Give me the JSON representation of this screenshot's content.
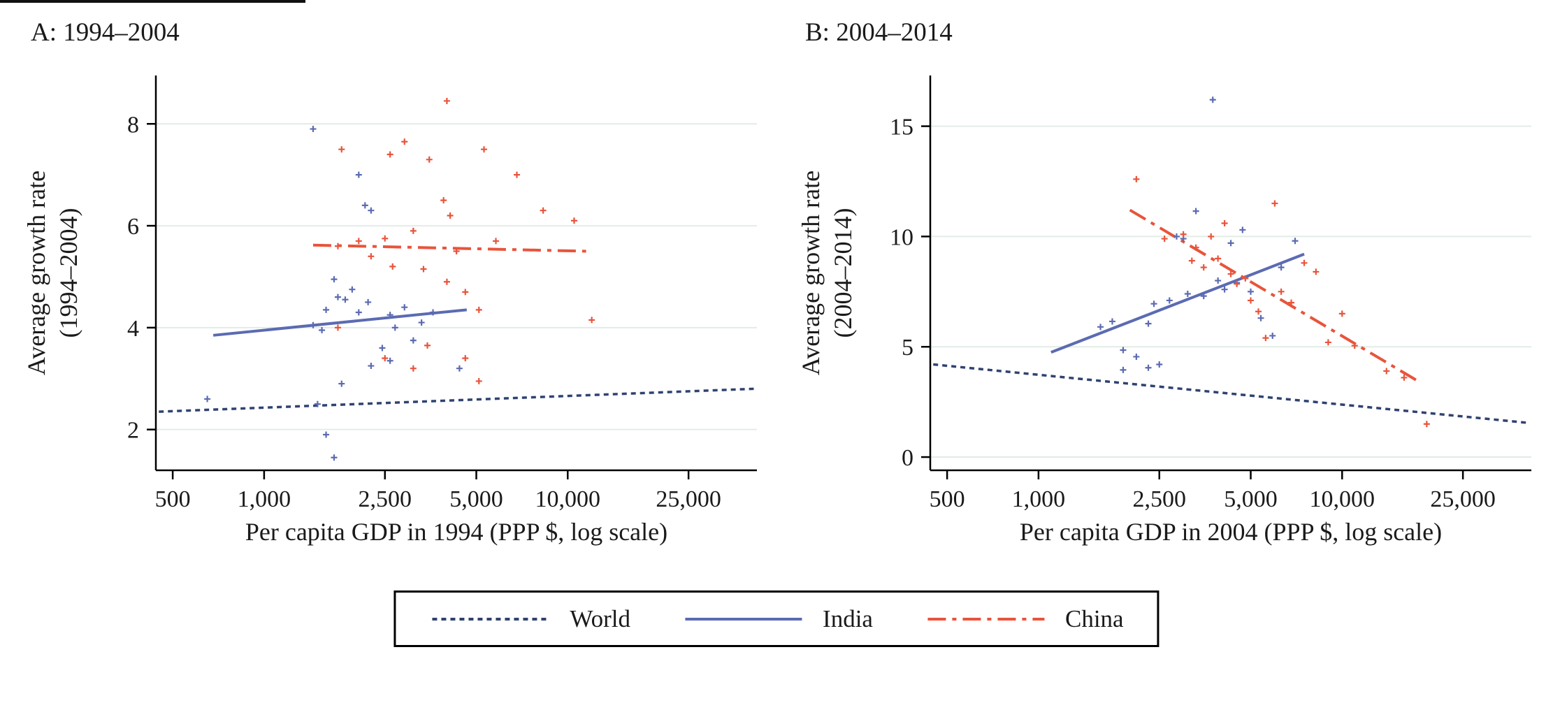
{
  "chart_data": {
    "type": "scatter",
    "description": "Two-panel scatter plot with log-scale GDP per capita on x-axis and average growth rate on y-axis; fitted trend lines for World, India (states) and China (provinces).",
    "panels": [
      {
        "id": "A",
        "title": "A: 1994–2004",
        "ylabel_line1": "Average growth rate",
        "ylabel_line2": "(1994–2004)",
        "xlabel": "Per capita GDP in 1994 (PPP $, log scale)",
        "xlim": [
          440,
          42000
        ],
        "ylim": [
          1.2,
          8.95
        ],
        "x_ticks": [
          500,
          1000,
          2500,
          5000,
          10000,
          25000
        ],
        "x_tick_labels": [
          "500",
          "1,000",
          "2,500",
          "5,000",
          "10,000",
          "25,000"
        ],
        "y_ticks": [
          2,
          4,
          6,
          8
        ],
        "y_tick_labels": [
          "2",
          "4",
          "6",
          "8"
        ],
        "grid": "horizontal",
        "scatter": {
          "india": [
            [
              650,
              2.6
            ],
            [
              1450,
              7.9
            ],
            [
              2050,
              7.0
            ],
            [
              2150,
              6.4
            ],
            [
              2250,
              6.3
            ],
            [
              1700,
              4.95
            ],
            [
              1750,
              4.6
            ],
            [
              1850,
              4.55
            ],
            [
              1950,
              4.75
            ],
            [
              1600,
              4.35
            ],
            [
              1450,
              4.05
            ],
            [
              1550,
              3.95
            ],
            [
              2050,
              4.3
            ],
            [
              2200,
              4.5
            ],
            [
              2600,
              4.25
            ],
            [
              2900,
              4.4
            ],
            [
              2700,
              4.0
            ],
            [
              2450,
              3.6
            ],
            [
              2600,
              3.35
            ],
            [
              2250,
              3.25
            ],
            [
              3100,
              3.75
            ],
            [
              3300,
              4.1
            ],
            [
              3600,
              4.3
            ],
            [
              4400,
              3.2
            ],
            [
              1800,
              2.9
            ],
            [
              1500,
              2.5
            ],
            [
              1600,
              1.9
            ],
            [
              1700,
              1.45
            ]
          ],
          "china": [
            [
              4000,
              8.45
            ],
            [
              1800,
              7.5
            ],
            [
              2600,
              7.4
            ],
            [
              2900,
              7.65
            ],
            [
              3500,
              7.3
            ],
            [
              5300,
              7.5
            ],
            [
              6800,
              7.0
            ],
            [
              8300,
              6.3
            ],
            [
              3900,
              6.5
            ],
            [
              4100,
              6.2
            ],
            [
              3100,
              5.9
            ],
            [
              2500,
              5.75
            ],
            [
              2050,
              5.7
            ],
            [
              1750,
              5.6
            ],
            [
              2250,
              5.4
            ],
            [
              2650,
              5.2
            ],
            [
              3350,
              5.15
            ],
            [
              4000,
              4.9
            ],
            [
              4600,
              4.7
            ],
            [
              5100,
              4.35
            ],
            [
              5800,
              5.7
            ],
            [
              4300,
              5.5
            ],
            [
              1750,
              4.0
            ],
            [
              2500,
              3.4
            ],
            [
              3100,
              3.2
            ],
            [
              3450,
              3.65
            ],
            [
              4600,
              3.4
            ],
            [
              5100,
              2.95
            ],
            [
              10500,
              6.1
            ],
            [
              12000,
              4.15
            ]
          ]
        },
        "lines": {
          "world": [
            [
              450,
              2.35
            ],
            [
              41000,
              2.8
            ]
          ],
          "india": [
            [
              680,
              3.85
            ],
            [
              4650,
              4.35
            ]
          ],
          "china": [
            [
              1450,
              5.62
            ],
            [
              11500,
              5.5
            ]
          ]
        }
      },
      {
        "id": "B",
        "title": "B: 2004–2014",
        "ylabel_line1": "Average growth rate",
        "ylabel_line2": "(2004–2014)",
        "xlabel": "Per capita GDP in 2004 (PPP $, log scale)",
        "xlim": [
          440,
          42000
        ],
        "ylim": [
          -0.6,
          17.3
        ],
        "x_ticks": [
          500,
          1000,
          2500,
          5000,
          10000,
          25000
        ],
        "x_tick_labels": [
          "500",
          "1,000",
          "2,500",
          "5,000",
          "10,000",
          "25,000"
        ],
        "y_ticks": [
          0,
          5,
          10,
          15
        ],
        "y_tick_labels": [
          "0",
          "5",
          "10",
          "15"
        ],
        "grid": "horizontal",
        "scatter": {
          "india": [
            [
              1600,
              5.9
            ],
            [
              1750,
              6.15
            ],
            [
              1900,
              4.85
            ],
            [
              2100,
              4.55
            ],
            [
              2300,
              6.05
            ],
            [
              2400,
              6.95
            ],
            [
              2500,
              4.2
            ],
            [
              2700,
              7.1
            ],
            [
              2850,
              10.0
            ],
            [
              3000,
              9.9
            ],
            [
              3100,
              7.4
            ],
            [
              3300,
              11.15
            ],
            [
              3500,
              7.3
            ],
            [
              3750,
              16.2
            ],
            [
              3900,
              8.0
            ],
            [
              4100,
              7.6
            ],
            [
              4300,
              9.7
            ],
            [
              4500,
              7.9
            ],
            [
              4700,
              10.3
            ],
            [
              5000,
              7.5
            ],
            [
              5400,
              6.3
            ],
            [
              5900,
              5.5
            ],
            [
              6300,
              8.6
            ],
            [
              7000,
              9.8
            ],
            [
              2300,
              4.05
            ],
            [
              1900,
              3.95
            ]
          ],
          "china": [
            [
              2100,
              12.6
            ],
            [
              2600,
              9.9
            ],
            [
              3000,
              10.1
            ],
            [
              3200,
              8.9
            ],
            [
              3300,
              9.5
            ],
            [
              3500,
              8.6
            ],
            [
              3700,
              10.0
            ],
            [
              3900,
              9.0
            ],
            [
              4100,
              10.6
            ],
            [
              4300,
              8.3
            ],
            [
              4500,
              7.85
            ],
            [
              4800,
              8.1
            ],
            [
              5000,
              7.1
            ],
            [
              5300,
              6.6
            ],
            [
              5600,
              5.4
            ],
            [
              6000,
              11.5
            ],
            [
              6300,
              7.5
            ],
            [
              6800,
              7.0
            ],
            [
              7500,
              8.8
            ],
            [
              8200,
              8.4
            ],
            [
              9000,
              5.2
            ],
            [
              10000,
              6.5
            ],
            [
              11000,
              5.05
            ],
            [
              14000,
              3.9
            ],
            [
              16000,
              3.6
            ],
            [
              19000,
              1.5
            ]
          ]
        },
        "lines": {
          "world": [
            [
              450,
              4.2
            ],
            [
              41000,
              1.55
            ]
          ],
          "india": [
            [
              1100,
              4.75
            ],
            [
              7500,
              9.2
            ]
          ],
          "china": [
            [
              2000,
              11.2
            ],
            [
              18000,
              3.4
            ]
          ]
        }
      }
    ],
    "legend_position": "bottom-center"
  },
  "legend": {
    "items": [
      {
        "key": "world",
        "label": "World",
        "style": "dashed"
      },
      {
        "key": "india",
        "label": "India",
        "style": "solid"
      },
      {
        "key": "china",
        "label": "China",
        "style": "dash-dot"
      }
    ]
  },
  "style": {
    "colors": {
      "india": "#5b6bb2",
      "china": "#e8543c",
      "world": "#2f4270",
      "grid": "#e2ece6",
      "axis": "#000000",
      "text": "#1a1a1a"
    },
    "dash": {
      "world": "7 6",
      "india": "",
      "china": "26 9 6 9"
    },
    "line_width": {
      "world": 3.5,
      "india": 4,
      "china": 4
    }
  }
}
